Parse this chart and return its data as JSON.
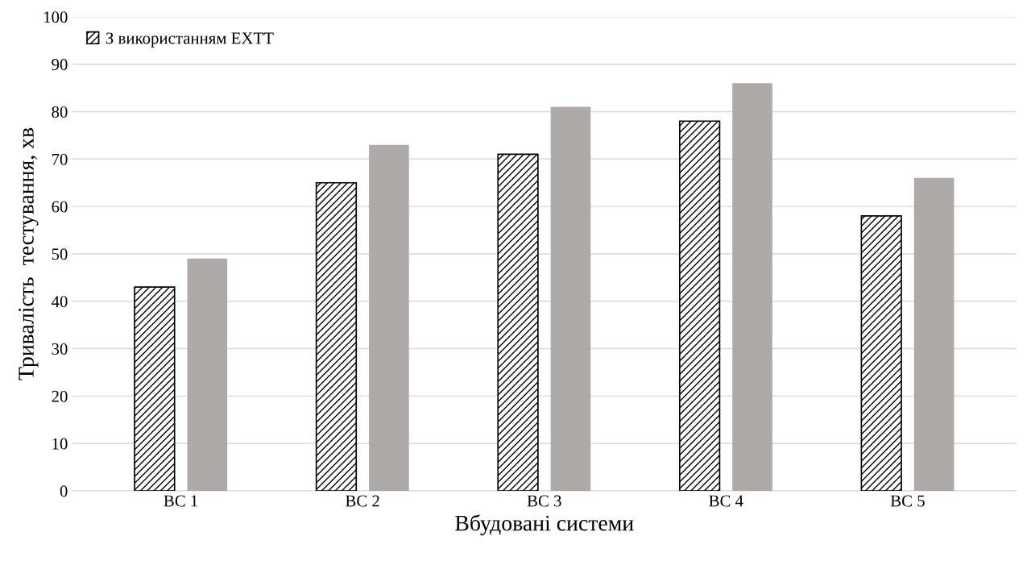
{
  "chart_data": {
    "type": "bar",
    "xlabel": "Вбудовані системи",
    "ylabel": "Тривалість  тестування, хв",
    "categories": [
      "ВС 1",
      "ВС 2",
      "ВС 3",
      "ВС 4",
      "ВС 5"
    ],
    "series": [
      {
        "name": "З використанням EXTT",
        "color": "#000000",
        "values": [
          43,
          65,
          71,
          78,
          58
        ]
      },
      {
        "color": "#aeaaaa",
        "values": [
          49,
          73,
          81,
          86,
          66
        ]
      }
    ],
    "ylim": [
      0,
      100
    ],
    "yticks": [
      0,
      10,
      20,
      30,
      40,
      50,
      60,
      70,
      80,
      90,
      100
    ],
    "grid": "y",
    "legend": "top left"
  }
}
